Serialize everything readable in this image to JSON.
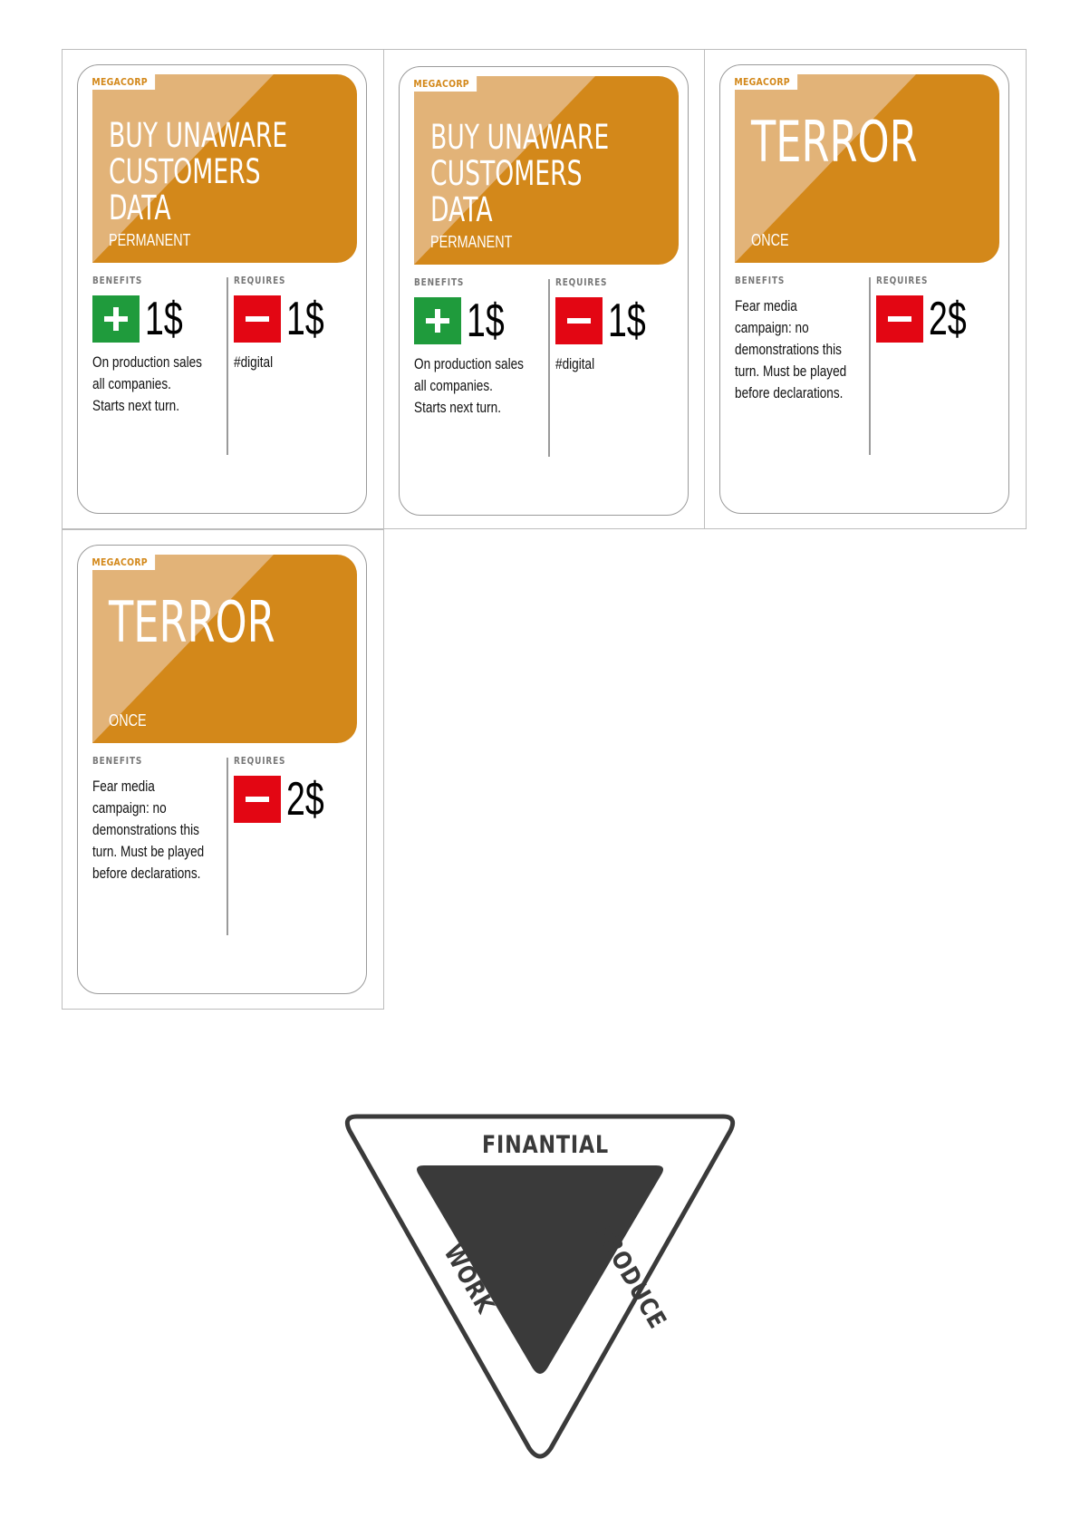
{
  "cards": [
    {
      "brand": "MEGACORP",
      "title": "BUY UNAWARE\nCUSTOMERS DATA",
      "duration": "PERMANENT",
      "benefits_label": "BENEFITS",
      "requires_label": "REQUIRES",
      "benefit_amount": "1$",
      "benefit_text": "On production sales\nall companies.\nStarts next turn.",
      "requires_amount": "1$",
      "requires_text": "#digital"
    },
    {
      "brand": "MEGACORP",
      "title": "BUY UNAWARE\nCUSTOMERS DATA",
      "duration": "PERMANENT",
      "benefits_label": "BENEFITS",
      "requires_label": "REQUIRES",
      "benefit_amount": "1$",
      "benefit_text": "On production sales\nall companies.\nStarts next turn.",
      "requires_amount": "1$",
      "requires_text": "#digital"
    },
    {
      "brand": "MEGACORP",
      "title": "TERROR",
      "duration": "ONCE",
      "benefits_label": "BENEFITS",
      "requires_label": "REQUIRES",
      "benefit_text": "Fear media\ncampaign: no\ndemonstrations this\nturn. Must be played\nbefore declarations.",
      "requires_amount": "2$"
    },
    {
      "brand": "MEGACORP",
      "title": "TERROR",
      "duration": "ONCE",
      "benefits_label": "BENEFITS",
      "requires_label": "REQUIRES",
      "benefit_text": "Fear media\ncampaign: no\ndemonstrations this\nturn. Must be played\nbefore declarations.",
      "requires_amount": "2$"
    }
  ],
  "triangle": {
    "top": "FINANTIAL",
    "left": "WORK",
    "right": "PRODUCE"
  },
  "colors": {
    "banner_dark": "#d3881a",
    "banner_light": "#e2b378",
    "benefit_green": "#1f9b3c",
    "cost_red": "#e30613",
    "triangle_dark": "#3a3a3a"
  }
}
